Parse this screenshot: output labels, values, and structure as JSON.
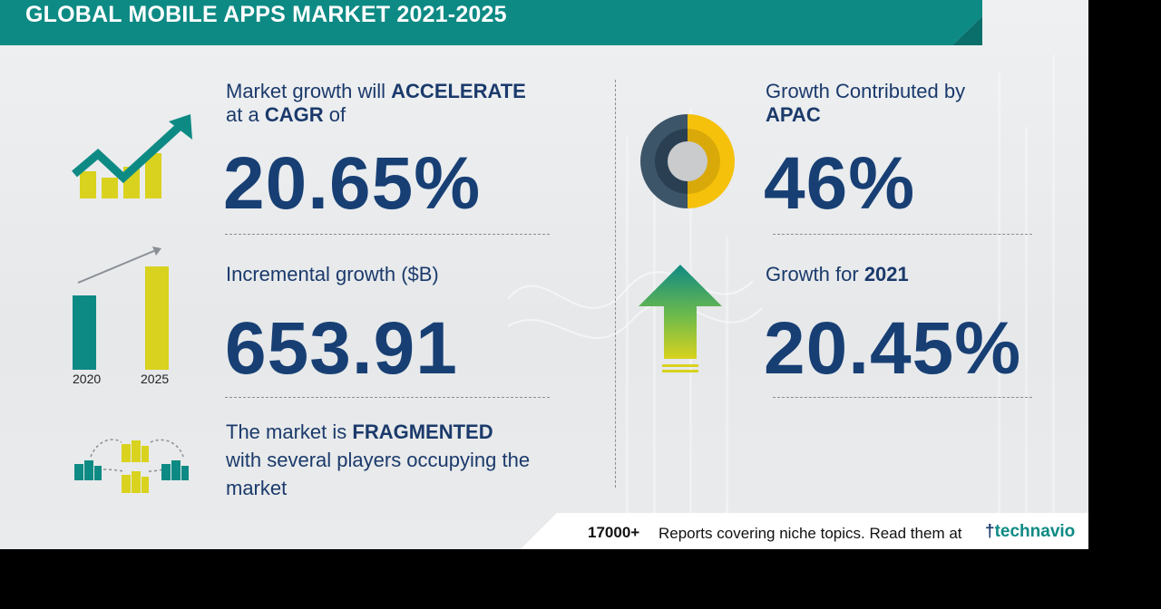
{
  "header": {
    "title": "GLOBAL MOBILE APPS MARKET 2021-2025"
  },
  "cagr": {
    "line1_pre": "Market growth will ",
    "line1_bold": "ACCELERATE",
    "line2_pre": "at a ",
    "line2_bold": "CAGR",
    "line2_post": " of",
    "value": "20.65%"
  },
  "incremental": {
    "label": "Incremental growth ($B)",
    "value": "653.91",
    "years": [
      "2020",
      "2025"
    ]
  },
  "fragmented": {
    "line1_pre": "The market is ",
    "line1_bold": "FRAGMENTED",
    "line2": "with several players occupying the",
    "line3": "market"
  },
  "region": {
    "label": "Growth Contributed by",
    "bold": "APAC",
    "value": "46%"
  },
  "yoy": {
    "label_pre": "Growth for ",
    "label_bold": "2021",
    "value": "20.45%"
  },
  "footer": {
    "count": "17000+",
    "text": "Reports covering niche topics. Read them at",
    "brand": "technavio"
  },
  "colors": {
    "teal": "#0e8a84",
    "navy": "#173f74",
    "yellow": "#d9d21e",
    "gold": "#f5c10b"
  },
  "icons": [
    "trend-up-bars-icon",
    "growth-bars-icon",
    "buildings-network-icon",
    "donut-icon",
    "up-arrow-icon"
  ]
}
